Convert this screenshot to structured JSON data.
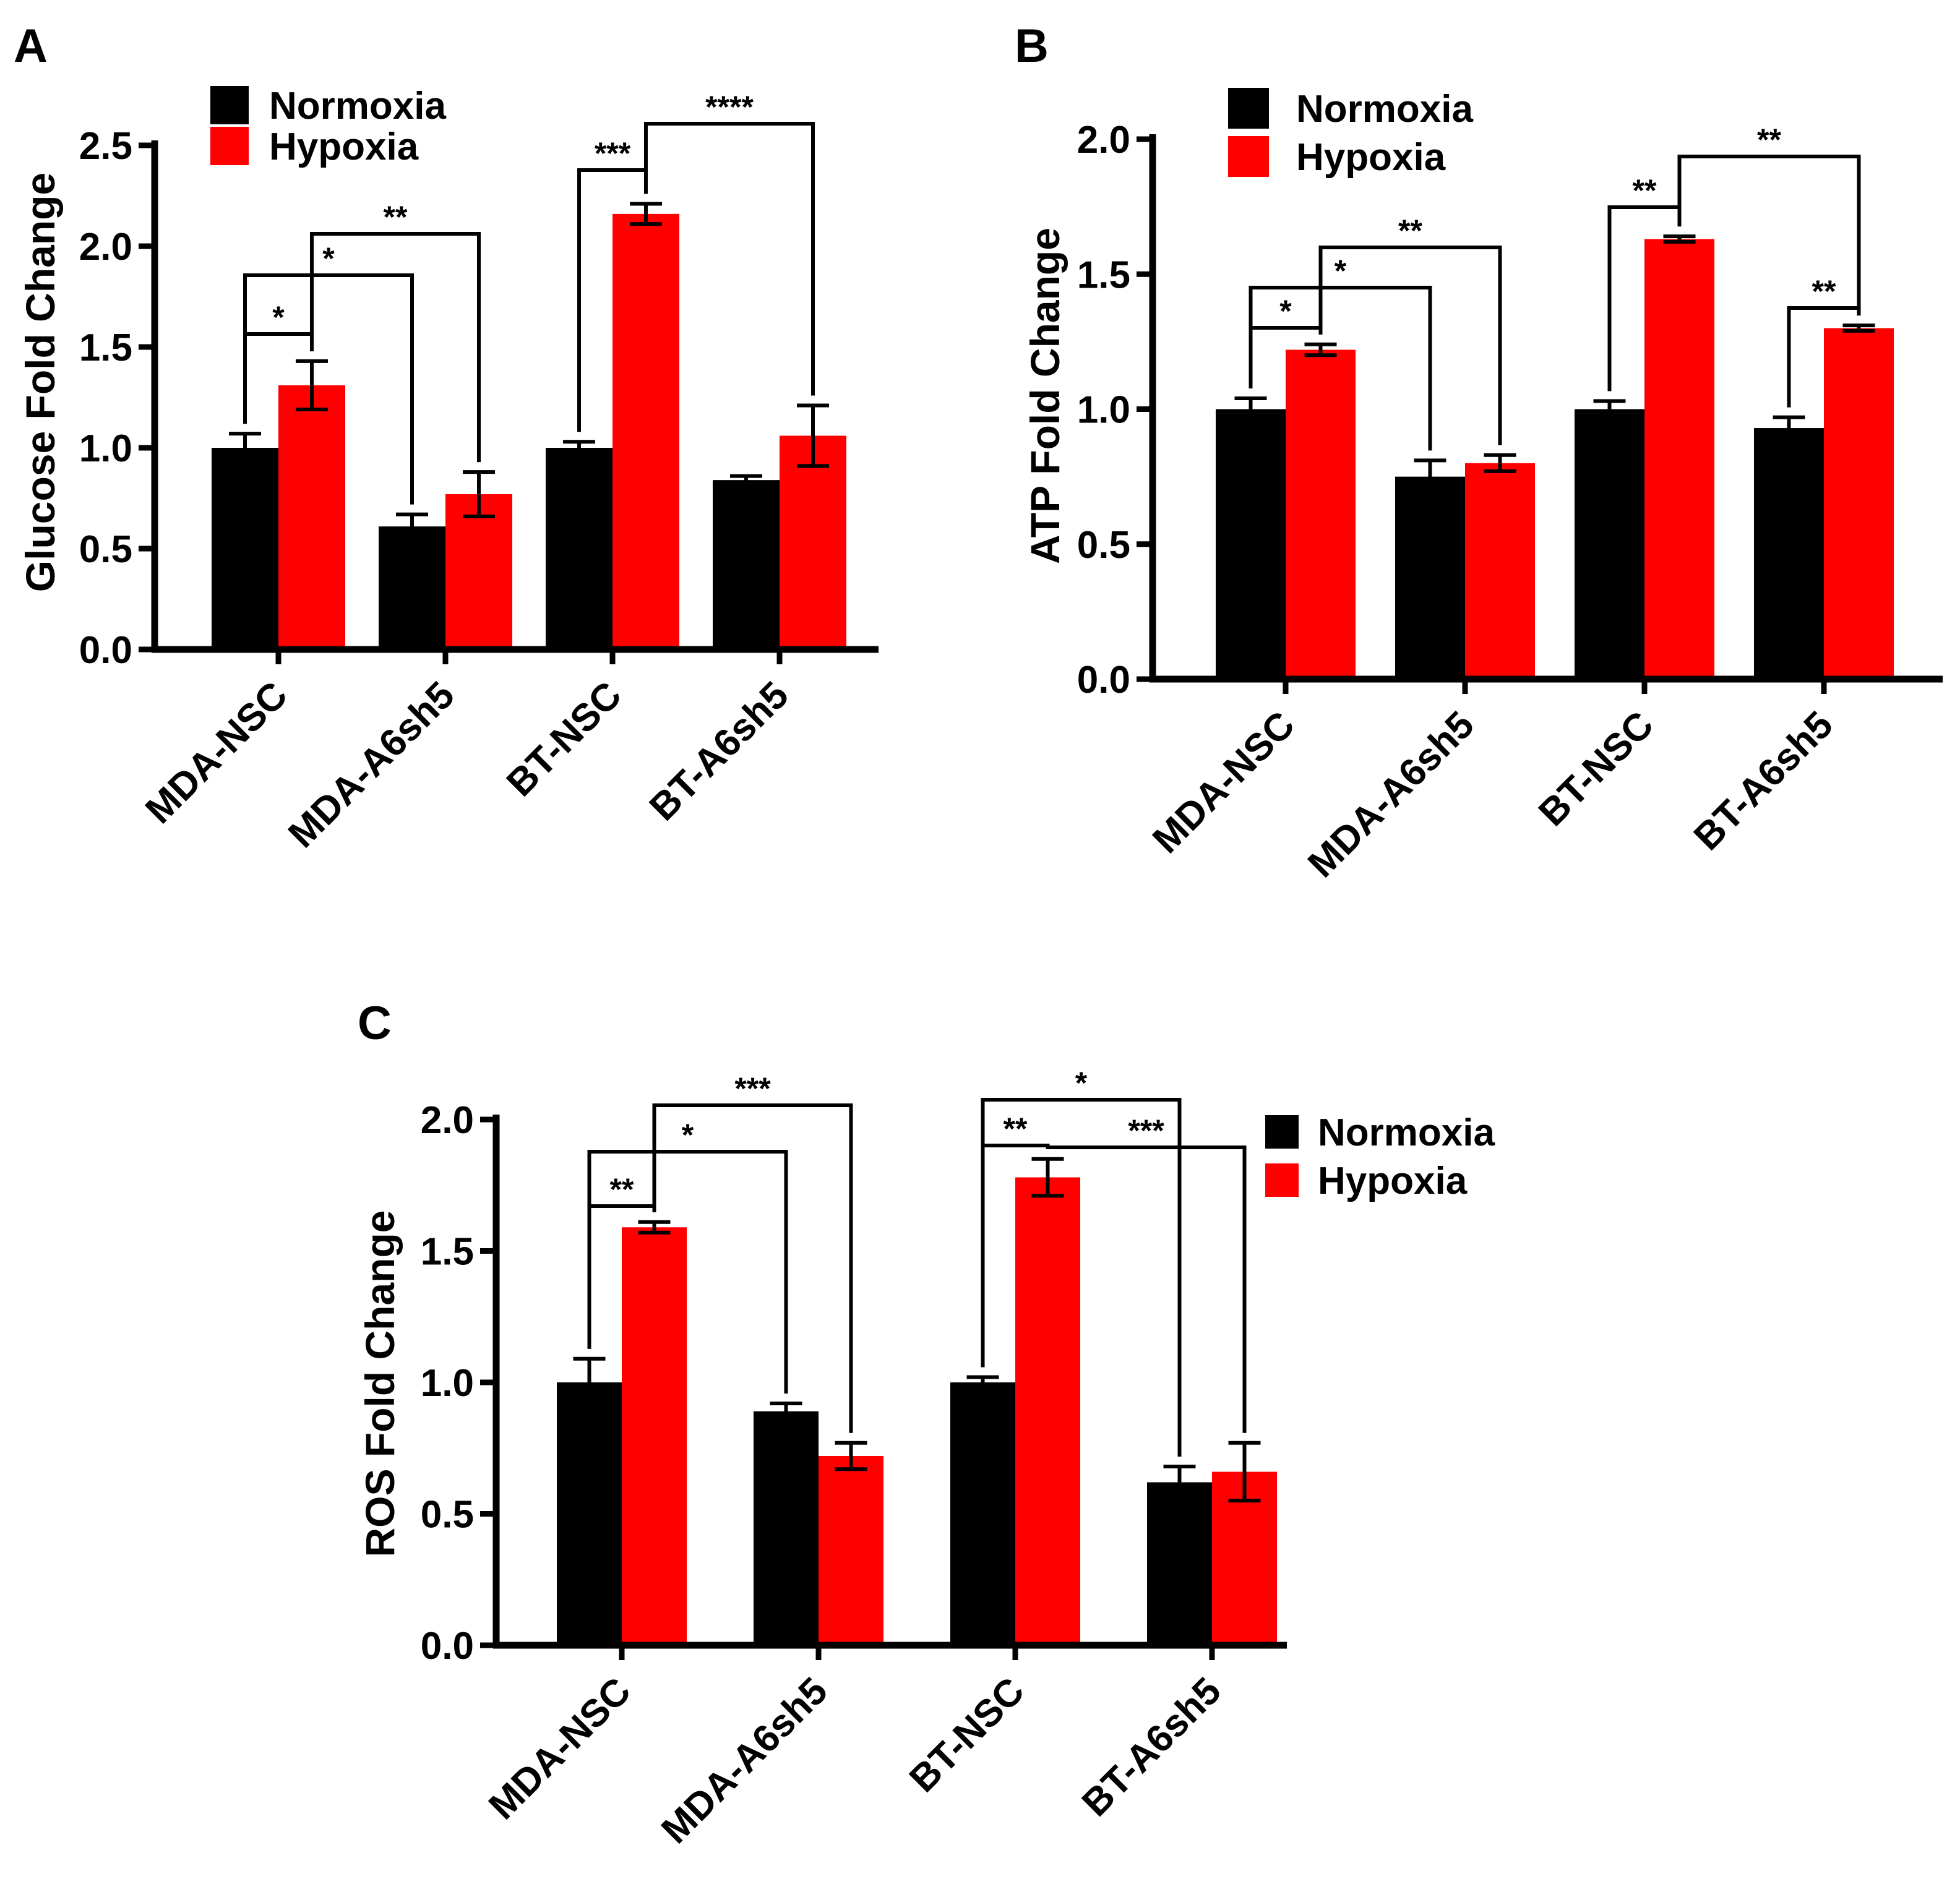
{
  "colors": {
    "normoxia": "#000000",
    "hypoxia": "#ff0000"
  },
  "chart_data": [
    {
      "panel": "A",
      "type": "bar",
      "ylabel": "Glucose Fold Change",
      "ylim": [
        0,
        2.5
      ],
      "yticks": [
        "0.0",
        "0.5",
        "1.0",
        "1.5",
        "2.0",
        "2.5"
      ],
      "categories": [
        "MDA-NSC",
        "MDA-A6sh5",
        "BT-NSC",
        "BT-A6sh5"
      ],
      "legend": {
        "placement": "top-left",
        "entries": [
          "Normoxia",
          "Hypoxia"
        ]
      },
      "series": [
        {
          "name": "Normoxia",
          "values": [
            1.0,
            0.61,
            1.0,
            0.84
          ],
          "errors": [
            0.07,
            0.06,
            0.03,
            0.02
          ]
        },
        {
          "name": "Hypoxia",
          "values": [
            1.31,
            0.77,
            2.16,
            1.06
          ],
          "errors": [
            0.12,
            0.11,
            0.05,
            0.15
          ]
        }
      ],
      "significance": [
        {
          "label": "*",
          "from": [
            0,
            0
          ],
          "to": [
            0,
            1
          ]
        },
        {
          "label": "*",
          "from": [
            0,
            0
          ],
          "to": [
            1,
            0
          ]
        },
        {
          "label": "**",
          "from": [
            0,
            1
          ],
          "to": [
            1,
            1
          ]
        },
        {
          "label": "***",
          "from": [
            2,
            0
          ],
          "to": [
            2,
            1
          ]
        },
        {
          "label": "****",
          "from": [
            2,
            1
          ],
          "to": [
            3,
            1
          ]
        }
      ]
    },
    {
      "panel": "B",
      "type": "bar",
      "ylabel": "ATP Fold Change",
      "ylim": [
        0,
        2.0
      ],
      "yticks": [
        "0.0",
        "0.5",
        "1.0",
        "1.5",
        "2.0"
      ],
      "categories": [
        "MDA-NSC",
        "MDA-A6sh5",
        "BT-NSC",
        "BT-A6sh5"
      ],
      "legend": {
        "placement": "top-left",
        "entries": [
          "Normoxia",
          "Hypoxia"
        ]
      },
      "series": [
        {
          "name": "Normoxia",
          "values": [
            1.0,
            0.75,
            1.0,
            0.93
          ],
          "errors": [
            0.04,
            0.06,
            0.03,
            0.04
          ]
        },
        {
          "name": "Hypoxia",
          "values": [
            1.22,
            0.8,
            1.63,
            1.3
          ],
          "errors": [
            0.02,
            0.03,
            0.01,
            0.01
          ]
        }
      ],
      "significance": [
        {
          "label": "*",
          "from": [
            0,
            0
          ],
          "to": [
            0,
            1
          ]
        },
        {
          "label": "*",
          "from": [
            0,
            0
          ],
          "to": [
            1,
            0
          ]
        },
        {
          "label": "**",
          "from": [
            0,
            1
          ],
          "to": [
            1,
            1
          ]
        },
        {
          "label": "**",
          "from": [
            2,
            0
          ],
          "to": [
            2,
            1
          ]
        },
        {
          "label": "**",
          "from": [
            2,
            1
          ],
          "to": [
            3,
            1
          ]
        },
        {
          "label": "**",
          "from": [
            3,
            0
          ],
          "to": [
            3,
            1
          ]
        }
      ]
    },
    {
      "panel": "C",
      "type": "bar",
      "ylabel": "ROS Fold Change",
      "ylim": [
        0,
        2.0
      ],
      "yticks": [
        "0.0",
        "0.5",
        "1.0",
        "1.5",
        "2.0"
      ],
      "categories": [
        "MDA-NSC",
        "MDA-A6sh5",
        "BT-NSC",
        "BT-A6sh5"
      ],
      "legend": {
        "placement": "right",
        "entries": [
          "Normoxia",
          "Hypoxia"
        ]
      },
      "series": [
        {
          "name": "Normoxia",
          "values": [
            1.0,
            0.89,
            1.0,
            0.62
          ],
          "errors": [
            0.09,
            0.03,
            0.02,
            0.06
          ]
        },
        {
          "name": "Hypoxia",
          "values": [
            1.59,
            0.72,
            1.78,
            0.66
          ],
          "errors": [
            0.02,
            0.05,
            0.07,
            0.11
          ]
        }
      ],
      "significance": [
        {
          "label": "**",
          "from": [
            0,
            0
          ],
          "to": [
            0,
            1
          ]
        },
        {
          "label": "*",
          "from": [
            0,
            0
          ],
          "to": [
            1,
            0
          ]
        },
        {
          "label": "***",
          "from": [
            0,
            1
          ],
          "to": [
            1,
            1
          ]
        },
        {
          "label": "**",
          "from": [
            2,
            0
          ],
          "to": [
            2,
            1
          ]
        },
        {
          "label": "*",
          "from": [
            2,
            0
          ],
          "to": [
            3,
            0
          ]
        },
        {
          "label": "***",
          "from": [
            2,
            1
          ],
          "to": [
            3,
            1
          ]
        }
      ]
    }
  ]
}
